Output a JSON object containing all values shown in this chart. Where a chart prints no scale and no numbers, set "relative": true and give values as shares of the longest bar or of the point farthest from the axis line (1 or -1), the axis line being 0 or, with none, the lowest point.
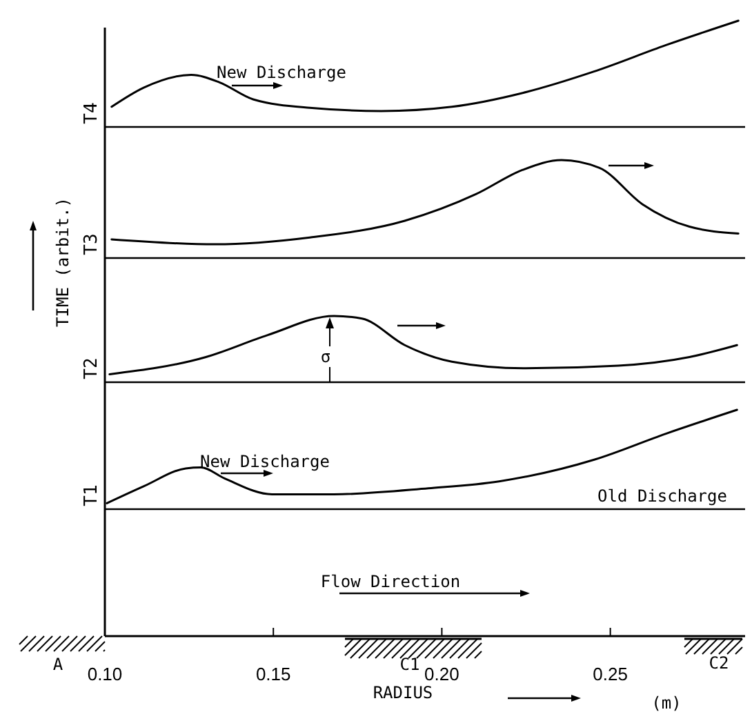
{
  "chart_data": [
    {
      "type": "line",
      "relative": true,
      "ylabel": "T4",
      "xlim": [
        0.1,
        0.29
      ],
      "line_style": "solid",
      "x": [
        0.102,
        0.1115,
        0.1256,
        0.134,
        0.144,
        0.1608,
        0.182,
        0.203,
        0.224,
        0.245,
        0.2665,
        0.288
      ],
      "series": [
        {
          "color": "#000000",
          "values": [
            0.19,
            0.37,
            0.49,
            0.42,
            0.26,
            0.18,
            0.15,
            0.19,
            0.32,
            0.52,
            0.77,
            1
          ]
        }
      ],
      "annotations": [
        "New Discharge"
      ]
    },
    {
      "type": "line",
      "relative": true,
      "ylabel": "T3",
      "xlim": [
        0.1,
        0.29
      ],
      "line_style": "solid",
      "x": [
        0.102,
        0.1327,
        0.1608,
        0.189,
        0.21,
        0.224,
        0.2355,
        0.2468,
        0.2595,
        0.2735,
        0.288
      ],
      "series": [
        {
          "color": "#000000",
          "values": [
            0.19,
            0.14,
            0.21,
            0.38,
            0.65,
            0.9,
            1,
            0.92,
            0.55,
            0.32,
            0.25
          ]
        }
      ]
    },
    {
      "type": "line",
      "relative": true,
      "ylabel": "T2",
      "xlim": [
        0.1,
        0.29
      ],
      "line_style": "solid",
      "x": [
        0.1014,
        0.13,
        0.1482,
        0.168,
        0.1763,
        0.189,
        0.203,
        0.2242,
        0.2524,
        0.2735,
        0.2876
      ],
      "series": [
        {
          "color": "#000000",
          "values": [
            0.12,
            0.38,
            0.71,
            1,
            0.96,
            0.56,
            0.31,
            0.21,
            0.25,
            0.38,
            0.56
          ]
        }
      ],
      "annotations": [
        "σ"
      ]
    },
    {
      "type": "line",
      "relative": true,
      "ylabel": "T1",
      "xlabel": "RADIUS",
      "xlim": [
        0.1,
        0.29
      ],
      "line_style": "solid",
      "xticks": [
        {
          "value": 0.1,
          "label": "0.10"
        },
        {
          "value": 0.15,
          "label": "0.15"
        },
        {
          "value": 0.2,
          "label": "0.20"
        },
        {
          "value": 0.25,
          "label": "0.25"
        }
      ],
      "x": [
        0.1006,
        0.1115,
        0.124,
        0.1285,
        0.1355,
        0.1496,
        0.168,
        0.196,
        0.217,
        0.2454,
        0.2665,
        0.2876
      ],
      "series": [
        {
          "color": "#000000",
          "values": [
            0.06,
            0.23,
            0.41,
            0.42,
            0.31,
            0.15,
            0.15,
            0.21,
            0.28,
            0.5,
            0.76,
            1
          ]
        }
      ],
      "annotations": [
        "New Discharge",
        "Old Discharge",
        "Flow Direction",
        "A",
        "C1",
        "C2",
        "(m)",
        "TIME (arbit.)"
      ]
    }
  ]
}
